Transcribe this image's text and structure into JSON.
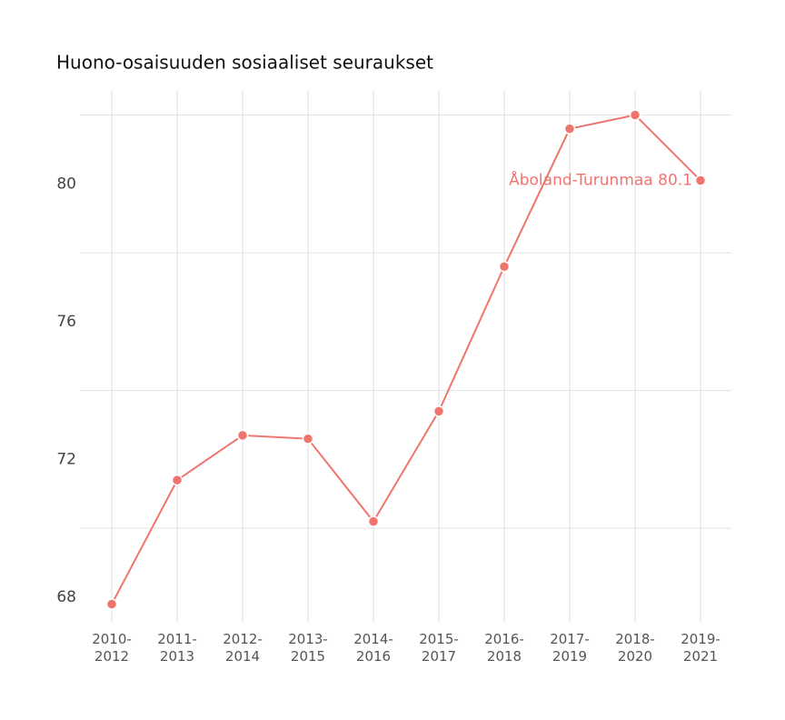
{
  "chart_data": {
    "type": "line",
    "title": "Huono-osaisuuden sosiaaliset seuraukset",
    "categories": [
      "2010-2012",
      "2011-2013",
      "2012-2014",
      "2013-2015",
      "2014-2016",
      "2015-2017",
      "2016-2018",
      "2017-2019",
      "2018-2020",
      "2019-2021"
    ],
    "series": [
      {
        "name": "Åboland-Turunmaa",
        "color": "#f0746e",
        "values": [
          67.8,
          71.4,
          72.7,
          72.6,
          70.2,
          73.4,
          77.6,
          81.6,
          82.0,
          80.1
        ]
      }
    ],
    "ylim": [
      67.26,
      82.7
    ],
    "yticks": [
      68,
      72,
      76,
      80
    ],
    "minor_yticks": [
      70,
      74,
      78,
      82
    ],
    "grid": true
  }
}
